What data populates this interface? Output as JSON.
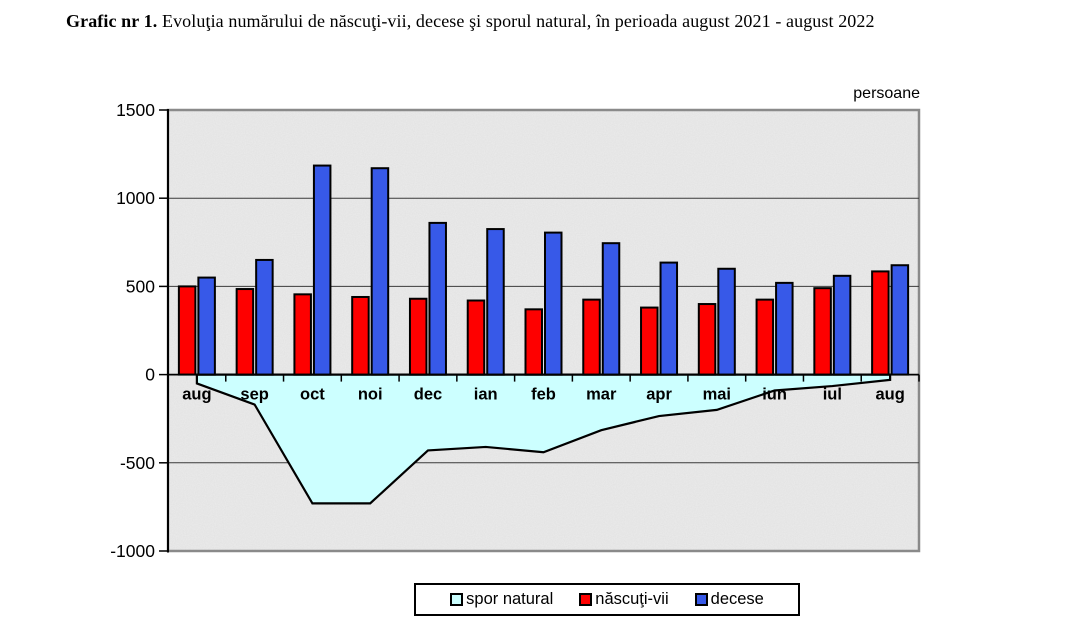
{
  "title": {
    "prefix": "Grafic nr 1.",
    "rest": "Evoluţia numărului de născuţi-vii, decese şi sporul natural, în perioada august 2021 - august 2022"
  },
  "chart_data": {
    "type": "bar",
    "unit_label": "persoane",
    "categories": [
      "aug",
      "sep",
      "oct",
      "noi",
      "dec",
      "ian",
      "feb",
      "mar",
      "apr",
      "mai",
      "iun",
      "iul",
      "aug"
    ],
    "series": [
      {
        "name": "spor natural",
        "render": "area",
        "color": "#CCFFFF",
        "values": [
          -50,
          -170,
          -730,
          -730,
          -430,
          -410,
          -440,
          -315,
          -235,
          -200,
          -90,
          -65,
          -30
        ]
      },
      {
        "name": "născuţi-vii",
        "render": "bar",
        "color": "#FE0000",
        "values": [
          500,
          485,
          455,
          440,
          430,
          420,
          370,
          425,
          380,
          400,
          425,
          490,
          585
        ]
      },
      {
        "name": "decese",
        "render": "bar",
        "color": "#3759E8",
        "values": [
          550,
          650,
          1185,
          1170,
          860,
          825,
          805,
          745,
          635,
          600,
          520,
          560,
          620
        ]
      }
    ],
    "ylim": [
      -1000,
      1500
    ],
    "yticks": [
      1500,
      1000,
      500,
      0,
      -500,
      -1000
    ],
    "grid": true,
    "legend_position": "bottom",
    "plot_background": "#E9E9E9",
    "gridline_color": "#3A3A3A",
    "axis_color": "#000000",
    "plot_border_color": "#8A8A8A"
  }
}
